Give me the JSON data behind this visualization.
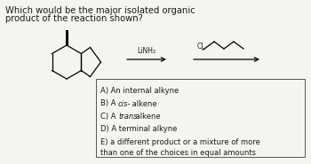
{
  "title_line1": "Which would be the major isolated organic",
  "title_line2": "product of the reaction shown?",
  "reagent": "LiNH₂",
  "choices": [
    "A) An internal alkyne",
    "B) A cis- alkene",
    "C) A trans- alkene",
    "D) A terminal alkyne",
    "E) a different product or a mixture of more\nthan one of the choices in equal amounts"
  ],
  "bg_color": "#f5f5f0",
  "text_color": "#1a1a1a",
  "box_color": "#555555"
}
